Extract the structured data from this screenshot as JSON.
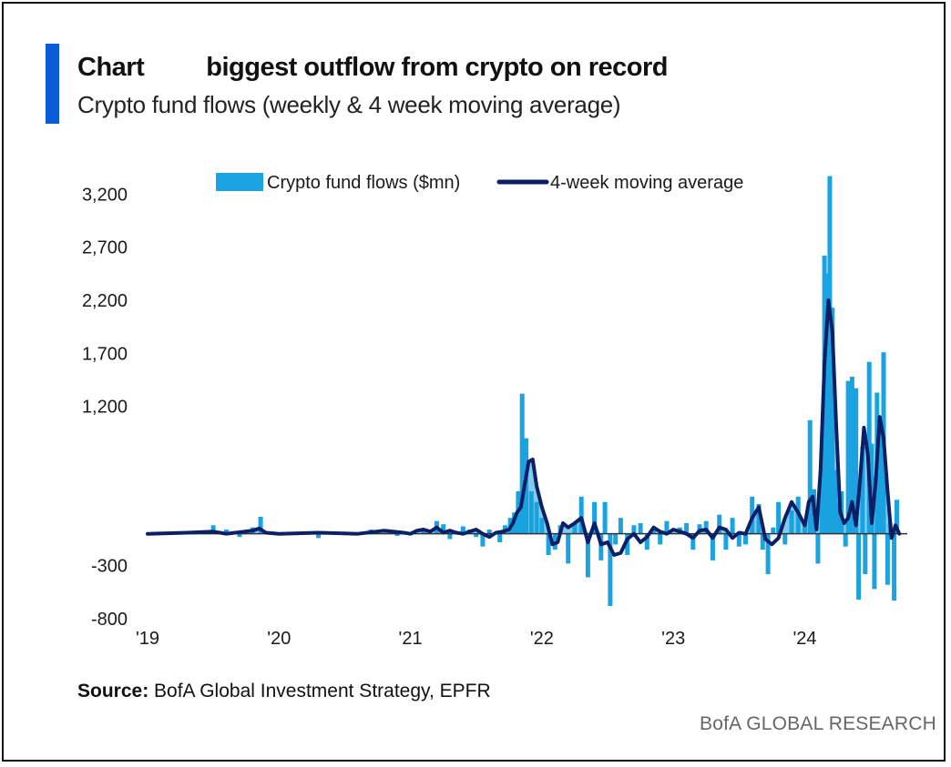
{
  "header": {
    "title": "Chart         biggest outflow from crypto on record",
    "subtitle": "Crypto fund flows (weekly & 4  week moving average)"
  },
  "footer": {
    "source_label": "Source:",
    "source_text": " BofA Global Investment Strategy, EPFR",
    "brand": "BofA GLOBAL RESEARCH"
  },
  "colors": {
    "bars": "#1aa3e0",
    "line": "#0b1f66",
    "accent": "#0a5cd6",
    "zero_line": "#333333"
  },
  "chart_data": {
    "type": "bar",
    "title": "biggest outflow from crypto on record",
    "subtitle": "Crypto fund flows (weekly & 4  week moving average)",
    "ylim": [
      -800,
      3400
    ],
    "yticks": [
      3200,
      2700,
      2200,
      1700,
      1200,
      -300,
      -800
    ],
    "ytick_labels": [
      "3,200",
      "2,700",
      "2,200",
      "1,700",
      "1,200",
      "-300",
      "-800"
    ],
    "xlim": [
      2019.0,
      2024.78
    ],
    "xticks": [
      2019,
      2020,
      2021,
      2022,
      2023,
      2024
    ],
    "xtick_labels": [
      "'19",
      "'20",
      "'21",
      "'22",
      "'23",
      "'24"
    ],
    "legend": {
      "position": "top-center",
      "entries": [
        "Crypto fund flows ($mn)",
        "4-week moving average"
      ]
    },
    "series": [
      {
        "name": "Crypto fund flows ($mn)",
        "kind": "bar",
        "x": [
          2019.5,
          2019.6,
          2019.7,
          2019.8,
          2019.86,
          2020.3,
          2020.7,
          2020.9,
          2020.95,
          2021.1,
          2021.2,
          2021.25,
          2021.3,
          2021.4,
          2021.45,
          2021.5,
          2021.55,
          2021.6,
          2021.68,
          2021.72,
          2021.76,
          2021.79,
          2021.82,
          2021.85,
          2021.88,
          2021.92,
          2021.96,
          2022.0,
          2022.05,
          2022.1,
          2022.14,
          2022.2,
          2022.25,
          2022.3,
          2022.35,
          2022.4,
          2022.45,
          2022.48,
          2022.52,
          2022.56,
          2022.6,
          2022.65,
          2022.7,
          2022.75,
          2022.8,
          2022.85,
          2022.9,
          2022.95,
          2023.05,
          2023.1,
          2023.15,
          2023.2,
          2023.25,
          2023.3,
          2023.35,
          2023.4,
          2023.45,
          2023.5,
          2023.55,
          2023.6,
          2023.65,
          2023.68,
          2023.72,
          2023.76,
          2023.8,
          2023.85,
          2023.9,
          2023.95,
          2024.0,
          2024.04,
          2024.07,
          2024.1,
          2024.13,
          2024.15,
          2024.17,
          2024.19,
          2024.21,
          2024.23,
          2024.25,
          2024.28,
          2024.31,
          2024.33,
          2024.36,
          2024.39,
          2024.41,
          2024.44,
          2024.46,
          2024.49,
          2024.51,
          2024.53,
          2024.55,
          2024.58,
          2024.6,
          2024.63,
          2024.65,
          2024.68,
          2024.7
        ],
        "values": [
          80,
          40,
          -30,
          60,
          160,
          -40,
          40,
          -20,
          20,
          30,
          120,
          90,
          -50,
          70,
          40,
          -30,
          -120,
          40,
          -80,
          80,
          150,
          200,
          400,
          1320,
          900,
          400,
          300,
          150,
          -200,
          -150,
          80,
          -280,
          100,
          350,
          -410,
          300,
          -250,
          300,
          -680,
          -100,
          150,
          -200,
          80,
          100,
          -150,
          60,
          -100,
          120,
          60,
          100,
          -150,
          90,
          120,
          -250,
          180,
          -150,
          150,
          -120,
          -100,
          350,
          280,
          -150,
          -380,
          60,
          300,
          -100,
          220,
          350,
          100,
          1070,
          420,
          -280,
          700,
          2620,
          2450,
          3370,
          2130,
          600,
          300,
          400,
          -120,
          1440,
          1480,
          1370,
          -620,
          820,
          -380,
          1620,
          850,
          -520,
          1330,
          1030,
          1710,
          -480,
          100,
          -630,
          320
        ]
      },
      {
        "name": "4-week moving average",
        "kind": "line",
        "x": [
          2019.0,
          2019.3,
          2019.5,
          2019.55,
          2019.6,
          2019.8,
          2019.85,
          2019.9,
          2020.0,
          2020.3,
          2020.6,
          2020.8,
          2020.95,
          2021.0,
          2021.05,
          2021.1,
          2021.15,
          2021.2,
          2021.25,
          2021.3,
          2021.35,
          2021.4,
          2021.45,
          2021.5,
          2021.55,
          2021.6,
          2021.65,
          2021.7,
          2021.75,
          2021.78,
          2021.81,
          2021.84,
          2021.87,
          2021.9,
          2021.93,
          2021.96,
          2022.0,
          2022.04,
          2022.08,
          2022.12,
          2022.16,
          2022.2,
          2022.25,
          2022.3,
          2022.35,
          2022.4,
          2022.45,
          2022.5,
          2022.55,
          2022.6,
          2022.65,
          2022.7,
          2022.75,
          2022.8,
          2022.85,
          2022.9,
          2022.95,
          2023.0,
          2023.05,
          2023.1,
          2023.15,
          2023.2,
          2023.25,
          2023.3,
          2023.35,
          2023.4,
          2023.45,
          2023.5,
          2023.55,
          2023.6,
          2023.65,
          2023.7,
          2023.75,
          2023.8,
          2023.85,
          2023.9,
          2023.95,
          2024.0,
          2024.03,
          2024.06,
          2024.09,
          2024.12,
          2024.15,
          2024.18,
          2024.21,
          2024.24,
          2024.27,
          2024.3,
          2024.33,
          2024.36,
          2024.39,
          2024.42,
          2024.45,
          2024.48,
          2024.51,
          2024.54,
          2024.57,
          2024.6,
          2024.63,
          2024.66,
          2024.69,
          2024.72
        ],
        "values": [
          0,
          10,
          20,
          10,
          0,
          30,
          50,
          10,
          0,
          10,
          0,
          30,
          10,
          0,
          30,
          40,
          20,
          60,
          10,
          30,
          10,
          0,
          20,
          40,
          0,
          -30,
          10,
          20,
          40,
          100,
          200,
          250,
          470,
          680,
          700,
          450,
          250,
          100,
          -100,
          -80,
          100,
          60,
          100,
          150,
          -80,
          100,
          -100,
          -80,
          -200,
          -180,
          -50,
          0,
          -80,
          -30,
          60,
          20,
          0,
          40,
          20,
          0,
          -40,
          30,
          40,
          -40,
          60,
          40,
          -40,
          10,
          0,
          150,
          250,
          -50,
          -100,
          -40,
          150,
          300,
          200,
          80,
          300,
          350,
          40,
          600,
          1600,
          2200,
          1900,
          1000,
          200,
          100,
          150,
          300,
          80,
          500,
          1000,
          750,
          100,
          500,
          1100,
          900,
          400,
          -40,
          80,
          0
        ]
      }
    ]
  }
}
